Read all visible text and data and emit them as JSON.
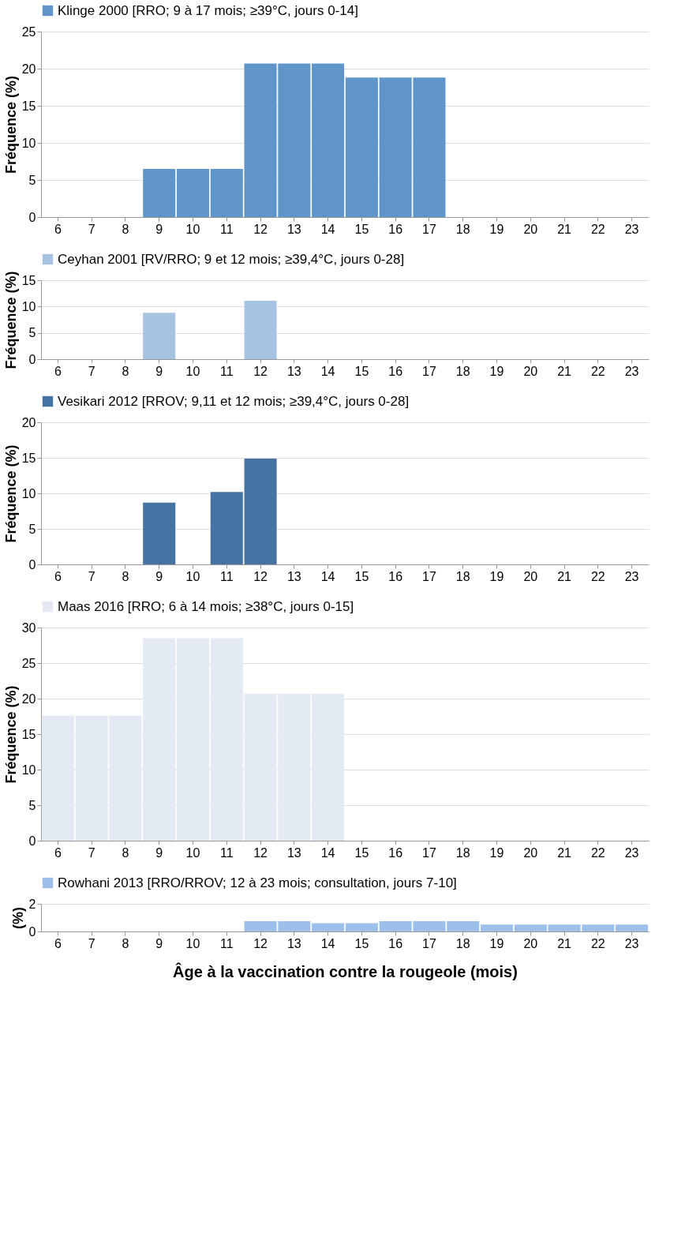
{
  "chart_data": [
    {
      "type": "bar",
      "categories": [
        "6",
        "7",
        "8",
        "9",
        "10",
        "11",
        "12",
        "13",
        "14",
        "15",
        "16",
        "17",
        "18",
        "19",
        "20",
        "21",
        "22",
        "23"
      ],
      "ylabel": "Fréquence (%)",
      "ylim": [
        0,
        25
      ],
      "yticks": [
        0,
        5,
        10,
        15,
        20,
        25
      ],
      "grid": "y",
      "legend": "top",
      "series": [
        {
          "name": "Klinge 2000 [RRO; 9 à 17 mois; ≥39°C, jours 0-14]",
          "color": "#5f95c8",
          "values": [
            null,
            null,
            null,
            6.5,
            6.5,
            6.5,
            20.7,
            20.7,
            20.7,
            18.8,
            18.8,
            18.8,
            null,
            null,
            null,
            null,
            null,
            null
          ]
        }
      ]
    },
    {
      "type": "bar",
      "categories": [
        "6",
        "7",
        "8",
        "9",
        "10",
        "11",
        "12",
        "13",
        "14",
        "15",
        "16",
        "17",
        "18",
        "19",
        "20",
        "21",
        "22",
        "23"
      ],
      "ylabel": "Fréquence (%)",
      "ylim": [
        0,
        15
      ],
      "yticks": [
        0,
        5,
        10,
        15
      ],
      "grid": "y",
      "legend": "top",
      "series": [
        {
          "name": "Ceyhan 2001 [RV/RRO; 9 et 12 mois; ≥39,4°C, jours 0-28]",
          "color": "#a7c3e2",
          "values": [
            null,
            null,
            null,
            8.8,
            null,
            null,
            11.1,
            null,
            null,
            null,
            null,
            null,
            null,
            null,
            null,
            null,
            null,
            null
          ]
        }
      ]
    },
    {
      "type": "bar",
      "categories": [
        "6",
        "7",
        "8",
        "9",
        "10",
        "11",
        "12",
        "13",
        "14",
        "15",
        "16",
        "17",
        "18",
        "19",
        "20",
        "21",
        "22",
        "23"
      ],
      "ylabel": "Fréquence (%)",
      "ylim": [
        0,
        20
      ],
      "yticks": [
        0,
        5,
        10,
        15,
        20
      ],
      "grid": "y",
      "legend": "top",
      "series": [
        {
          "name": "Vesikari 2012  [RROV; 9,11 et 12 mois; ≥39,4°C, jours 0-28]",
          "color": "#4573a3",
          "values": [
            null,
            null,
            null,
            8.7,
            null,
            10.2,
            14.9,
            null,
            null,
            null,
            null,
            null,
            null,
            null,
            null,
            null,
            null,
            null
          ]
        }
      ]
    },
    {
      "type": "bar",
      "categories": [
        "6",
        "7",
        "8",
        "9",
        "10",
        "11",
        "12",
        "13",
        "14",
        "15",
        "16",
        "17",
        "18",
        "19",
        "20",
        "21",
        "22",
        "23"
      ],
      "ylabel": "Fréquence (%)",
      "ylim": [
        0,
        30
      ],
      "yticks": [
        0,
        5,
        10,
        15,
        20,
        25,
        30
      ],
      "grid": "y",
      "legend": "top",
      "series": [
        {
          "name": "Maas 2016 [RRO; 6 à 14 mois; ≥38°C, jours 0-15]",
          "color": "#e3eaf4",
          "values": [
            17.6,
            17.6,
            17.6,
            28.5,
            28.5,
            28.5,
            20.7,
            20.7,
            20.7,
            null,
            null,
            null,
            null,
            null,
            null,
            null,
            null,
            null
          ]
        }
      ]
    },
    {
      "type": "bar",
      "categories": [
        "6",
        "7",
        "8",
        "9",
        "10",
        "11",
        "12",
        "13",
        "14",
        "15",
        "16",
        "17",
        "18",
        "19",
        "20",
        "21",
        "22",
        "23"
      ],
      "ylabel": "(%)",
      "xlabel": "Âge à la vaccination contre la rougeole (mois)",
      "ylim": [
        0,
        2
      ],
      "yticks": [
        0,
        2
      ],
      "grid": "y",
      "legend": "top",
      "series": [
        {
          "name": "Rowhani 2013 [RRO/RROV; 12 à 23 mois; consultation, jours 7-10]",
          "color": "#9dc0ea",
          "values": [
            null,
            null,
            null,
            null,
            null,
            null,
            0.75,
            0.75,
            0.6,
            0.6,
            0.75,
            0.75,
            0.75,
            0.5,
            0.5,
            0.5,
            0.5,
            0.5
          ]
        }
      ]
    }
  ]
}
